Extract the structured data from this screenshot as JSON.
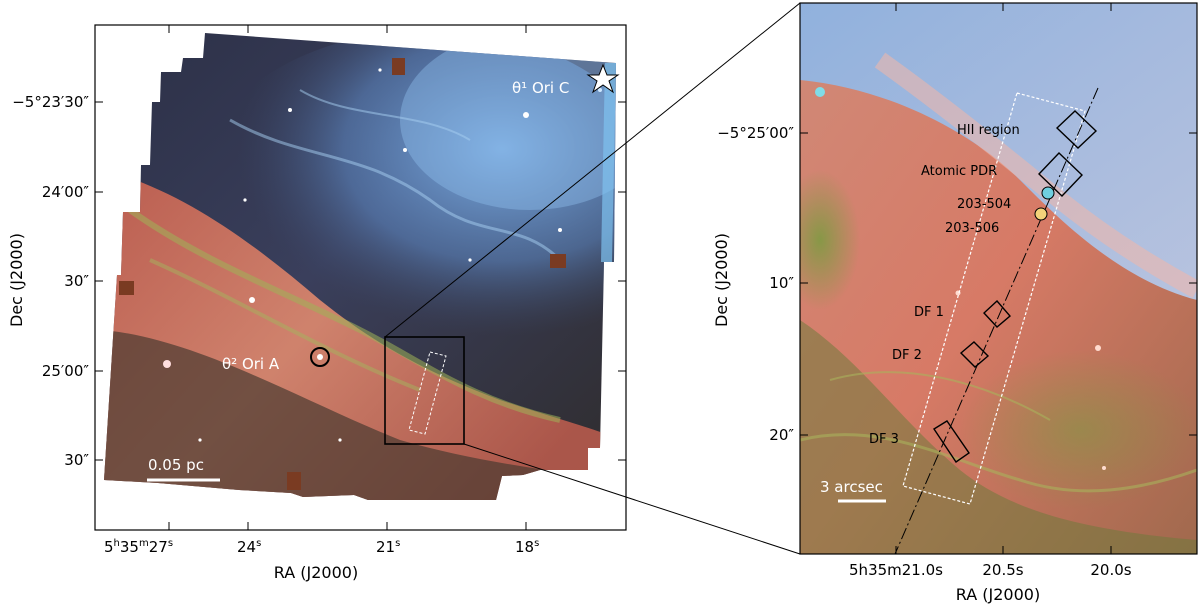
{
  "left_panel": {
    "x_axis_title": "RA (J2000)",
    "y_axis_title": "Dec (J2000)",
    "x_ticks": [
      {
        "main": "5",
        "sup1": "h",
        "mid": "35",
        "sup2": "m",
        "tail": "27",
        "sup3": "s"
      },
      {
        "main": "24",
        "sup1": "s"
      },
      {
        "main": "21",
        "sup1": "s"
      },
      {
        "main": "18",
        "sup1": "s"
      }
    ],
    "y_ticks": [
      "−5°23′30″",
      "24′00″",
      "30″",
      "25′00″",
      "30″"
    ],
    "label_theta1": "θ¹ Ori C",
    "label_theta2": "θ² Ori A",
    "scale_bar": "0.05 pc"
  },
  "right_panel": {
    "x_axis_title": "RA (J2000)",
    "y_axis_title": "Dec (J2000)",
    "x_ticks": [
      "5h35m21.0s",
      "20.5s",
      "20.0s"
    ],
    "y_ticks": [
      "−5°25′00″",
      "10″",
      "20″"
    ],
    "annotations": {
      "hii": "HII region",
      "atomic": "Atomic PDR",
      "p203_504": "203-504",
      "p203_506": "203-506",
      "df1": "DF 1",
      "df2": "DF 2",
      "df3": "DF 3"
    },
    "scale_bar": "3 arcsec"
  },
  "colors": {
    "nebula_blue": "#6f9fd6",
    "nebula_red": "#d8735d",
    "filament_green": "#8fa64a",
    "background": "#3a2e2c"
  }
}
